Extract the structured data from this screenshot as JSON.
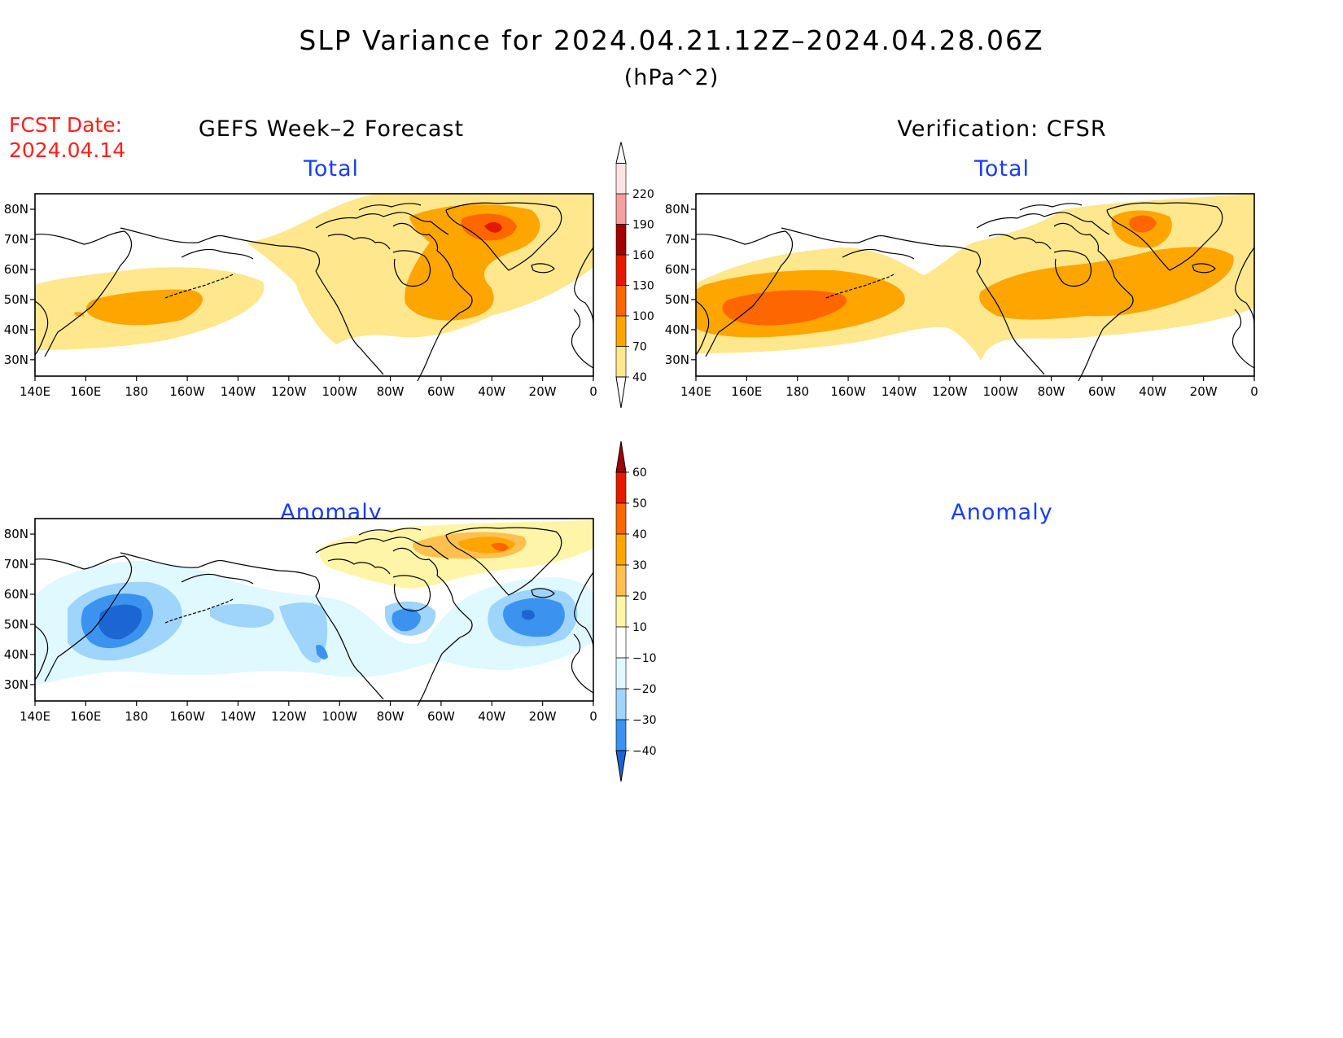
{
  "title": "SLP Variance for 2024.04.21.12Z–2024.04.28.06Z",
  "units": "(hPa^2)",
  "fcst_date_label": "FCST Date:",
  "fcst_date_value": "2024.04.14",
  "panels": {
    "forecast_heading": "GEFS Week–2 Forecast",
    "verification_heading": "Verification: CFSR",
    "total_label": "Total",
    "anomaly_label": "Anomaly"
  },
  "axes": {
    "lon_labels": [
      "140E",
      "160E",
      "180",
      "160W",
      "140W",
      "120W",
      "100W",
      "80W",
      "60W",
      "40W",
      "20W",
      "0"
    ],
    "lat_labels": [
      "80N",
      "70N",
      "60N",
      "50N",
      "40N",
      "30N"
    ]
  },
  "colorbars": {
    "total": {
      "levels": [
        "40",
        "70",
        "100",
        "130",
        "160",
        "190",
        "220"
      ],
      "colors": [
        "#fee78d",
        "#fea500",
        "#fe6600",
        "#e31a00",
        "#a30000",
        "#f2a0a0",
        "#fde3e3"
      ]
    },
    "anomaly": {
      "levels": [
        "60",
        "50",
        "40",
        "30",
        "20",
        "10",
        "−10",
        "−20",
        "−30",
        "−40"
      ],
      "colors": [
        "#a30000",
        "#e31a00",
        "#fe6600",
        "#fea500",
        "#ffc050",
        "#fff5a8",
        "#ffffff",
        "#e0f8ff",
        "#9fd4fb",
        "#3b93ef",
        "#1c66d4"
      ]
    }
  }
}
